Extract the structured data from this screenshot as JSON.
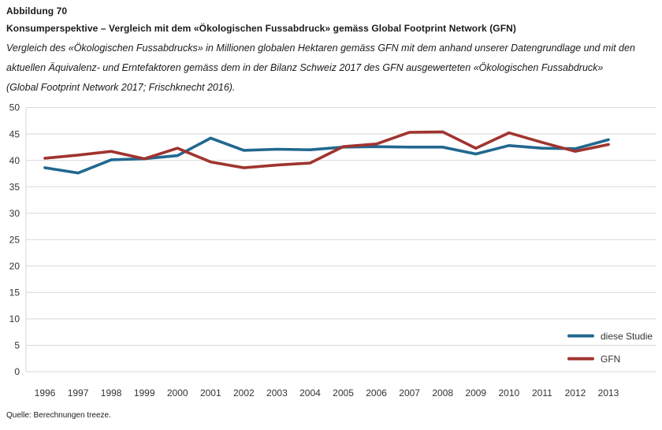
{
  "page": {
    "figure_label": "Abbildung 70",
    "title": "Konsumperspektive – Vergleich mit dem «Ökologischen Fussabdruck» gemäss Global Footprint Network (GFN)",
    "description_lines": [
      "Vergleich des «Ökologischen Fussabdrucks» in Millionen globalen Hektaren gemäss GFN mit dem anhand unserer Datengrundlage und mit den",
      "aktuellen Äquivalenz- und Erntefaktoren gemäss dem in der Bilanz Schweiz 2017 des GFN ausgewerteten «Ökologischen Fussabdruck»",
      "(Global Footprint Network 2017; Frischknecht 2016)."
    ],
    "source": "Quelle: Berechnungen treeze."
  },
  "chart_data": {
    "type": "line",
    "title": "",
    "xlabel": "",
    "ylabel": "",
    "x": [
      1996,
      1997,
      1998,
      1999,
      2000,
      2001,
      2002,
      2003,
      2004,
      2005,
      2006,
      2007,
      2008,
      2009,
      2010,
      2011,
      2012,
      2013
    ],
    "series": [
      {
        "name": "diese Studie",
        "color": "#21688f",
        "values": [
          38.6,
          37.6,
          40.1,
          40.3,
          40.9,
          44.2,
          41.9,
          42.1,
          42.0,
          42.5,
          42.6,
          42.5,
          42.5,
          41.2,
          42.8,
          42.3,
          42.2,
          43.9
        ]
      },
      {
        "name": "GFN",
        "color": "#a0342f",
        "values": [
          40.4,
          41.0,
          41.7,
          40.3,
          42.3,
          39.7,
          38.6,
          39.1,
          39.5,
          42.6,
          43.1,
          45.3,
          45.4,
          42.3,
          45.2,
          43.4,
          41.7,
          43.0
        ]
      }
    ],
    "ylim": [
      0,
      50
    ],
    "ytick_step": 5,
    "yticks": [
      0,
      5,
      10,
      15,
      20,
      25,
      30,
      35,
      40,
      45,
      50
    ],
    "grid": "horizontal-only",
    "gridline_color": "#d9d9d9",
    "tick_label_color": "#333333",
    "legend_position": "inside-bottom-right",
    "legend": [
      "diese Studie",
      "GFN"
    ]
  }
}
